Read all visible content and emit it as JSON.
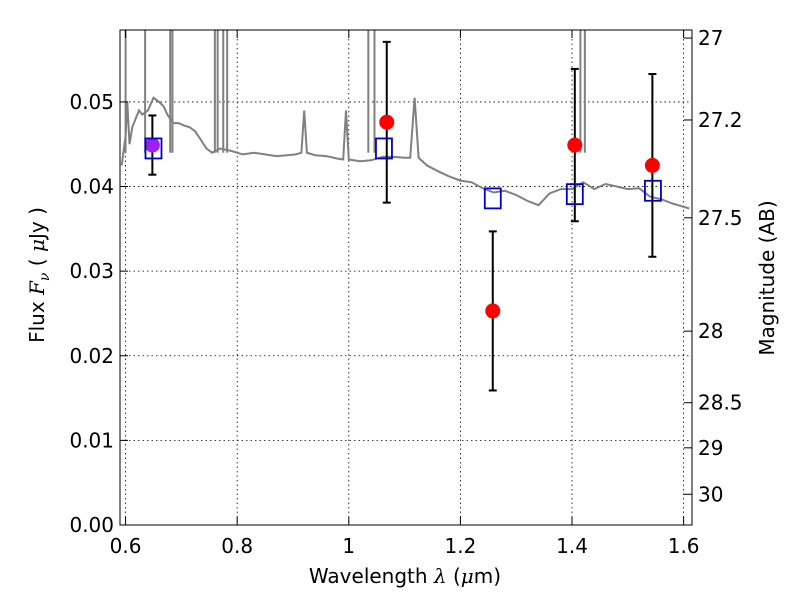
{
  "chart_data": {
    "type": "scatter",
    "title": "",
    "xlabel_text": "Wavelength ",
    "xlabel_symbol": "λ",
    "xlabel_unit_open": " (",
    "xlabel_unit_mu": "μ",
    "xlabel_unit_close": "m)",
    "ylabel_text": "Flux  ",
    "ylabel_symbol": "F",
    "ylabel_sub": "ν",
    "ylabel_unit_open": " ( ",
    "ylabel_unit_mu": "μ",
    "ylabel_unit_close": "Jy )",
    "y2label": "Magnitude (AB)",
    "xlim": [
      0.59,
      1.615
    ],
    "ylim": [
      0.0,
      0.0585
    ],
    "xticks": [
      0.6,
      0.8,
      1.0,
      1.2,
      1.4,
      1.6
    ],
    "xtick_labels": [
      "0.6",
      "0.8",
      "1",
      "1.2",
      "1.4",
      "1.6"
    ],
    "yticks": [
      0.0,
      0.01,
      0.02,
      0.03,
      0.04,
      0.05
    ],
    "ytick_labels": [
      "0.00",
      "0.01",
      "0.02",
      "0.03",
      "0.04",
      "0.05"
    ],
    "y2ticks": [
      27.0,
      27.2,
      27.5,
      28.0,
      28.5,
      29.0,
      30.0
    ],
    "y2tick_labels": [
      "27",
      "27.2",
      "27.5",
      "28",
      "28.5",
      "29",
      "30"
    ],
    "grid": true,
    "colors": {
      "observed": "#ff0000",
      "model_box": "#0000cc",
      "model_spectrum": "#808080",
      "overlap": "#a020f0",
      "errorbar": "#000000"
    },
    "series": [
      {
        "kind": "observed_points",
        "x": [
          0.648,
          1.068,
          1.258,
          1.405,
          1.544
        ],
        "y": [
          0.0449,
          0.0476,
          0.0253,
          0.0449,
          0.0425
        ],
        "yerr": [
          0.0035,
          0.0095,
          0.0094,
          0.009,
          0.0108
        ]
      },
      {
        "kind": "model_band_fluxes",
        "x": [
          0.65,
          1.063,
          1.258,
          1.405,
          1.545
        ],
        "y": [
          0.0445,
          0.0445,
          0.0386,
          0.0391,
          0.0395
        ]
      },
      {
        "kind": "model_spectrum",
        "x": [
          0.593,
          0.6,
          0.603,
          0.607,
          0.612,
          0.618,
          0.624,
          0.63,
          0.64,
          0.65,
          0.66,
          0.668,
          0.675,
          0.685,
          0.695,
          0.705,
          0.715,
          0.725,
          0.735,
          0.745,
          0.755,
          0.77,
          0.79,
          0.81,
          0.83,
          0.85,
          0.87,
          0.89,
          0.905,
          0.915,
          0.92,
          0.925,
          0.94,
          0.96,
          0.98,
          0.99,
          0.995,
          1.0,
          1.02,
          1.04,
          1.06,
          1.08,
          1.1,
          1.11,
          1.118,
          1.125,
          1.14,
          1.16,
          1.18,
          1.2,
          1.22,
          1.24,
          1.26,
          1.28,
          1.3,
          1.32,
          1.34,
          1.36,
          1.38,
          1.4,
          1.42,
          1.44,
          1.46,
          1.48,
          1.5,
          1.52,
          1.54,
          1.56,
          1.58,
          1.6,
          1.61
        ],
        "y": [
          0.0425,
          0.046,
          0.05,
          0.045,
          0.047,
          0.048,
          0.049,
          0.0485,
          0.049,
          0.0505,
          0.05,
          0.0495,
          0.0485,
          0.0475,
          0.0475,
          0.0472,
          0.047,
          0.0465,
          0.0455,
          0.0445,
          0.044,
          0.0445,
          0.0442,
          0.0438,
          0.044,
          0.0438,
          0.0436,
          0.0437,
          0.0438,
          0.044,
          0.049,
          0.044,
          0.0437,
          0.0436,
          0.0433,
          0.0432,
          0.049,
          0.0432,
          0.043,
          0.0431,
          0.0435,
          0.0435,
          0.0434,
          0.0434,
          0.0505,
          0.0434,
          0.0425,
          0.0418,
          0.0412,
          0.0407,
          0.0405,
          0.0398,
          0.0393,
          0.0395,
          0.039,
          0.0383,
          0.0378,
          0.0392,
          0.0397,
          0.0397,
          0.0405,
          0.0397,
          0.0403,
          0.04,
          0.0397,
          0.0398,
          0.0388,
          0.0385,
          0.038,
          0.0376,
          0.0374
        ]
      }
    ]
  }
}
